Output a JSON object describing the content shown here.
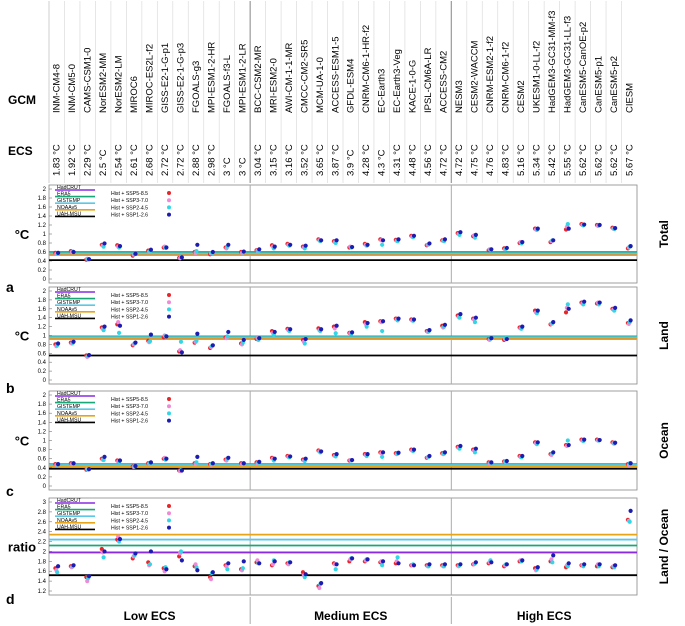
{
  "header": {
    "gcm_label": "GCM",
    "ecs_label": "ECS"
  },
  "models": [
    {
      "gcm": "INM-CM4-8",
      "ecs": "1.83 °C"
    },
    {
      "gcm": "INM-CM5-0",
      "ecs": "1.92 °C"
    },
    {
      "gcm": "CAMS-CSM1-0",
      "ecs": "2.29 °C"
    },
    {
      "gcm": "NorESM2-MM",
      "ecs": "2.5 °C"
    },
    {
      "gcm": "NorESM2-LM",
      "ecs": "2.54 °C"
    },
    {
      "gcm": "MIROC6",
      "ecs": "2.61 °C"
    },
    {
      "gcm": "MIROC-ES2L-f2",
      "ecs": "2.68 °C"
    },
    {
      "gcm": "GISS-E2-1-G-p1",
      "ecs": "2.72 °C"
    },
    {
      "gcm": "GISS-E2-1-G-p3",
      "ecs": "2.72 °C"
    },
    {
      "gcm": "FGOALS-g3",
      "ecs": "2.88 °C"
    },
    {
      "gcm": "MPI-ESM1-2-HR",
      "ecs": "2.98 °C"
    },
    {
      "gcm": "FGOALS-f3-L",
      "ecs": "3 °C"
    },
    {
      "gcm": "MPI-ESM1-2-LR",
      "ecs": "3 °C"
    },
    {
      "gcm": "BCC-CSM2-MR",
      "ecs": "3.04 °C"
    },
    {
      "gcm": "MRI-ESM2-0",
      "ecs": "3.15 °C"
    },
    {
      "gcm": "AWI-CM-1-1-MR",
      "ecs": "3.16 °C"
    },
    {
      "gcm": "CMCC-CM2-SR5",
      "ecs": "3.52 °C"
    },
    {
      "gcm": "MCM-UA-1-0",
      "ecs": "3.65 °C"
    },
    {
      "gcm": "ACCESS-ESM1-5",
      "ecs": "3.87 °C"
    },
    {
      "gcm": "GFDL-ESM4",
      "ecs": "3.9 °C"
    },
    {
      "gcm": "CNRM-CM6-1-HR-f2",
      "ecs": "4.28 °C"
    },
    {
      "gcm": "EC-Earth3",
      "ecs": "4.3 °C"
    },
    {
      "gcm": "EC-Earth3-Veg",
      "ecs": "4.31 °C"
    },
    {
      "gcm": "KACE-1-0-G",
      "ecs": "4.48 °C"
    },
    {
      "gcm": "IPSL-CM6A-LR",
      "ecs": "4.56 °C"
    },
    {
      "gcm": "ACCESS-CM2",
      "ecs": "4.72 °C"
    },
    {
      "gcm": "NESM3",
      "ecs": "4.72 °C"
    },
    {
      "gcm": "CESM2-WACCM",
      "ecs": "4.75 °C"
    },
    {
      "gcm": "CNRM-ESM2-1-f2",
      "ecs": "4.76 °C"
    },
    {
      "gcm": "CNRM-CM6-1-f2",
      "ecs": "4.83 °C"
    },
    {
      "gcm": "CESM2",
      "ecs": "5.16 °C"
    },
    {
      "gcm": "UKESM1-0-LL-f2",
      "ecs": "5.34 °C"
    },
    {
      "gcm": "HadGEM3-GC31-MM-f3",
      "ecs": "5.42 °C"
    },
    {
      "gcm": "HadGEM3-GC31-LL-f3",
      "ecs": "5.55 °C"
    },
    {
      "gcm": "CanESM5-CanOE-p2",
      "ecs": "5.62 °C"
    },
    {
      "gcm": "CanESM5-p1",
      "ecs": "5.62 °C"
    },
    {
      "gcm": "CanESM5-p2",
      "ecs": "5.62 °C"
    },
    {
      "gcm": "CIESM",
      "ecs": "5.67 °C"
    }
  ],
  "groups": {
    "low": "Low ECS",
    "medium": "Medium ECS",
    "high": "High ECS"
  },
  "legend": {
    "observations": [
      {
        "name": "HadCRUT",
        "color": "#8a2be2"
      },
      {
        "name": "ERA5",
        "color": "#18a878"
      },
      {
        "name": "GISTEMP",
        "color": "#5bc8e8"
      },
      {
        "name": "NOAAv5",
        "color": "#e8a417"
      },
      {
        "name": "UAH-MSU",
        "color": "#000000"
      }
    ],
    "scenarios": [
      {
        "name": "Hist + SSP5-8.5",
        "color": "#e8262a"
      },
      {
        "name": "Hist + SSP3-7.0",
        "color": "#f08ad8"
      },
      {
        "name": "Hist + SSP2-4.5",
        "color": "#33d6e6"
      },
      {
        "name": "Hist + SSP1-2.6",
        "color": "#1c1cb0"
      }
    ]
  },
  "chart_data": [
    {
      "type": "scatter",
      "panel": "a",
      "title": "Total",
      "ylabel": "°C",
      "ylim": [
        0,
        2
      ],
      "yticks": [
        "0",
        "0.2",
        "0.4",
        "0.6",
        "0.8",
        "1",
        "1.2",
        "1.4",
        "1.6",
        "1.8",
        "2"
      ],
      "observations": [
        0.56,
        0.6,
        0.57,
        0.53,
        0.42
      ],
      "series": [
        {
          "name": "Hist + SSP5-8.5",
          "values": [
            0.58,
            0.62,
            0.43,
            0.76,
            0.75,
            0.52,
            0.63,
            0.7,
            0.47,
            0.6,
            0.55,
            0.7,
            0.6,
            0.64,
            0.75,
            0.78,
            0.72,
            0.88,
            0.84,
            0.7,
            0.78,
            0.88,
            0.87,
            0.96,
            0.75,
            0.86,
            1.02,
            0.95,
            0.64,
            0.68,
            0.8,
            1.12,
            0.82,
            1.1,
            1.22,
            1.2,
            1.14,
            0.68
          ]
        },
        {
          "name": "Hist + SSP3-7.0",
          "values": [
            0.56,
            0.6,
            0.45,
            0.74,
            0.72,
            0.54,
            0.61,
            0.72,
            0.46,
            0.58,
            0.57,
            0.68,
            0.58,
            0.63,
            0.72,
            0.76,
            0.7,
            0.86,
            0.82,
            0.72,
            0.76,
            0.86,
            0.85,
            0.94,
            0.76,
            0.85,
            1.0,
            0.97,
            0.66,
            0.66,
            0.82,
            1.1,
            0.84,
            1.16,
            1.2,
            1.18,
            1.12,
            0.7
          ]
        },
        {
          "name": "Hist + SSP2-4.5",
          "values": [
            0.57,
            0.61,
            0.44,
            0.72,
            0.7,
            0.55,
            0.62,
            0.69,
            0.5,
            0.62,
            0.58,
            0.72,
            0.59,
            0.62,
            0.68,
            0.74,
            0.68,
            0.84,
            0.8,
            0.7,
            0.74,
            0.76,
            0.84,
            0.93,
            0.77,
            0.84,
            0.98,
            0.92,
            0.65,
            0.67,
            0.79,
            1.09,
            0.86,
            1.22,
            1.19,
            1.19,
            1.11,
            0.72
          ]
        },
        {
          "name": "Hist + SSP1-2.6",
          "values": [
            0.58,
            0.6,
            0.44,
            0.79,
            0.73,
            0.56,
            0.65,
            0.7,
            0.48,
            0.76,
            0.6,
            0.76,
            0.61,
            0.66,
            0.72,
            0.76,
            0.74,
            0.86,
            0.86,
            0.71,
            0.76,
            0.86,
            0.88,
            0.96,
            0.79,
            0.88,
            1.04,
            0.98,
            0.66,
            0.69,
            0.82,
            1.12,
            0.86,
            1.12,
            1.21,
            1.2,
            1.13,
            0.73
          ]
        }
      ]
    },
    {
      "type": "scatter",
      "panel": "b",
      "title": "Land",
      "ylabel": "°C",
      "ylim": [
        0,
        2
      ],
      "yticks": [
        "0",
        "0.2",
        "0.4",
        "0.6",
        "0.8",
        "1",
        "1.2",
        "1.4",
        "1.6",
        "1.8",
        "2"
      ],
      "observations": [
        0.95,
        0.98,
        0.96,
        0.92,
        0.55
      ],
      "series": [
        {
          "name": "Hist + SSP5-8.5",
          "values": [
            0.8,
            0.84,
            0.55,
            1.18,
            1.25,
            0.78,
            0.88,
            0.96,
            0.64,
            0.84,
            0.72,
            0.96,
            0.82,
            0.92,
            1.1,
            1.15,
            0.9,
            1.16,
            1.2,
            1.06,
            1.3,
            1.32,
            1.38,
            1.36,
            1.1,
            1.22,
            1.45,
            1.38,
            0.92,
            0.9,
            1.18,
            1.56,
            1.25,
            1.52,
            1.74,
            1.72,
            1.6,
            1.28
          ]
        },
        {
          "name": "Hist + SSP3-7.0",
          "values": [
            0.76,
            0.82,
            0.52,
            1.15,
            1.3,
            0.8,
            0.85,
            1.0,
            0.67,
            0.86,
            0.74,
            0.94,
            0.8,
            0.94,
            1.06,
            1.12,
            0.86,
            1.12,
            1.16,
            1.05,
            1.26,
            1.3,
            1.36,
            1.34,
            1.08,
            1.18,
            1.42,
            1.36,
            0.9,
            0.92,
            1.16,
            1.52,
            1.26,
            1.62,
            1.72,
            1.74,
            1.58,
            1.26
          ]
        },
        {
          "name": "Hist + SSP2-4.5",
          "values": [
            0.78,
            0.83,
            0.54,
            1.12,
            1.06,
            0.82,
            0.87,
            0.98,
            0.86,
            0.88,
            0.76,
            0.98,
            0.84,
            0.9,
            1.02,
            1.1,
            0.82,
            1.1,
            1.05,
            1.04,
            1.2,
            1.1,
            1.34,
            1.33,
            1.09,
            1.2,
            1.4,
            1.3,
            0.93,
            0.94,
            1.15,
            1.5,
            1.28,
            1.7,
            1.7,
            1.7,
            1.56,
            1.3
          ]
        },
        {
          "name": "Hist + SSP1-2.6",
          "values": [
            0.82,
            0.86,
            0.56,
            1.2,
            1.22,
            0.84,
            1.02,
            0.98,
            0.62,
            1.04,
            0.78,
            1.08,
            0.9,
            0.94,
            1.08,
            1.14,
            0.92,
            1.14,
            1.22,
            1.07,
            1.28,
            1.32,
            1.38,
            1.36,
            1.12,
            1.24,
            1.48,
            1.4,
            0.94,
            0.92,
            1.2,
            1.56,
            1.3,
            1.6,
            1.76,
            1.74,
            1.62,
            1.34
          ]
        }
      ]
    },
    {
      "type": "scatter",
      "panel": "c",
      "title": "Ocean",
      "ylabel": "°C",
      "ylim": [
        0,
        2
      ],
      "yticks": [
        "0",
        "0.2",
        "0.4",
        "0.6",
        "0.8",
        "1",
        "1.2",
        "1.4",
        "1.6",
        "1.8",
        "2"
      ],
      "observations": [
        0.45,
        0.48,
        0.46,
        0.43,
        0.38
      ],
      "series": [
        {
          "name": "Hist + SSP5-8.5",
          "values": [
            0.48,
            0.5,
            0.36,
            0.6,
            0.56,
            0.43,
            0.5,
            0.6,
            0.34,
            0.5,
            0.48,
            0.58,
            0.5,
            0.52,
            0.62,
            0.66,
            0.58,
            0.78,
            0.68,
            0.56,
            0.7,
            0.74,
            0.72,
            0.8,
            0.62,
            0.72,
            0.86,
            0.8,
            0.52,
            0.54,
            0.66,
            0.96,
            0.7,
            0.9,
            1.02,
            1.02,
            0.96,
            0.48
          ]
        },
        {
          "name": "Hist + SSP3-7.0",
          "values": [
            0.46,
            0.48,
            0.37,
            0.58,
            0.54,
            0.42,
            0.49,
            0.62,
            0.33,
            0.48,
            0.47,
            0.56,
            0.48,
            0.5,
            0.6,
            0.64,
            0.56,
            0.76,
            0.66,
            0.57,
            0.68,
            0.72,
            0.7,
            0.78,
            0.63,
            0.7,
            0.84,
            0.78,
            0.5,
            0.53,
            0.64,
            0.94,
            0.68,
            0.88,
            1.0,
            1.0,
            0.94,
            0.46
          ]
        },
        {
          "name": "Hist + SSP2-4.5",
          "values": [
            0.47,
            0.49,
            0.36,
            0.57,
            0.53,
            0.43,
            0.5,
            0.58,
            0.35,
            0.52,
            0.49,
            0.6,
            0.49,
            0.51,
            0.56,
            0.63,
            0.55,
            0.74,
            0.65,
            0.56,
            0.66,
            0.64,
            0.71,
            0.77,
            0.64,
            0.71,
            0.82,
            0.74,
            0.51,
            0.54,
            0.63,
            0.92,
            0.72,
            1.0,
            0.99,
            1.0,
            0.93,
            0.5
          ]
        },
        {
          "name": "Hist + SSP1-2.6",
          "values": [
            0.48,
            0.5,
            0.37,
            0.64,
            0.56,
            0.44,
            0.52,
            0.6,
            0.34,
            0.64,
            0.5,
            0.62,
            0.5,
            0.53,
            0.6,
            0.65,
            0.6,
            0.76,
            0.7,
            0.57,
            0.7,
            0.74,
            0.73,
            0.8,
            0.66,
            0.74,
            0.88,
            0.82,
            0.52,
            0.55,
            0.66,
            0.96,
            0.74,
            0.9,
            1.02,
            1.01,
            0.95,
            0.5
          ]
        }
      ]
    },
    {
      "type": "scatter",
      "panel": "d",
      "title": "Land / Ocean",
      "ylabel": "ratio",
      "ylim": [
        1.2,
        3.0
      ],
      "yticks": [
        "1.2",
        "1.4",
        "1.6",
        "1.8",
        "2",
        "2.2",
        "2.4",
        "2.6",
        "2.8",
        "3"
      ],
      "observations": [
        1.98,
        2.12,
        2.24,
        2.34,
        1.52
      ],
      "series": [
        {
          "name": "Hist + SSP5-8.5",
          "values": [
            1.66,
            1.7,
            1.48,
            2.05,
            2.24,
            1.86,
            1.78,
            1.66,
            1.9,
            1.7,
            1.48,
            1.72,
            1.64,
            1.78,
            1.72,
            1.76,
            1.58,
            1.3,
            1.76,
            1.8,
            1.8,
            1.78,
            1.76,
            1.72,
            1.72,
            1.72,
            1.72,
            1.74,
            1.76,
            1.7,
            1.8,
            1.66,
            1.8,
            1.68,
            1.72,
            1.7,
            1.68,
            2.64
          ]
        },
        {
          "name": "Hist + SSP3-7.0",
          "values": [
            1.62,
            1.68,
            1.4,
            1.98,
            2.3,
            1.9,
            1.72,
            1.6,
            1.96,
            1.74,
            1.44,
            1.7,
            1.62,
            1.82,
            1.74,
            1.74,
            1.52,
            1.26,
            1.74,
            1.84,
            1.82,
            1.8,
            1.8,
            1.72,
            1.7,
            1.7,
            1.7,
            1.74,
            1.78,
            1.72,
            1.82,
            1.62,
            1.84,
            1.72,
            1.72,
            1.74,
            1.7,
            2.62
          ]
        },
        {
          "name": "Hist + SSP2-4.5",
          "values": [
            1.58,
            1.7,
            1.46,
            1.88,
            2.2,
            1.92,
            1.74,
            1.68,
            2.0,
            1.68,
            1.56,
            1.64,
            1.66,
            1.76,
            1.82,
            1.78,
            1.48,
            1.34,
            1.64,
            1.86,
            1.84,
            1.72,
            1.88,
            1.74,
            1.7,
            1.7,
            1.72,
            1.76,
            1.82,
            1.74,
            1.8,
            1.64,
            1.78,
            1.7,
            1.7,
            1.7,
            1.68,
            2.6
          ]
        },
        {
          "name": "Hist + SSP1-2.6",
          "values": [
            1.7,
            1.72,
            1.5,
            2.0,
            2.25,
            1.96,
            2.0,
            1.64,
            1.82,
            1.62,
            1.58,
            1.76,
            1.8,
            1.76,
            1.8,
            1.78,
            1.54,
            1.36,
            1.74,
            1.86,
            1.84,
            1.8,
            1.76,
            1.72,
            1.74,
            1.74,
            1.74,
            1.78,
            1.78,
            1.74,
            1.82,
            1.68,
            1.92,
            1.76,
            1.74,
            1.74,
            1.72,
            2.82
          ]
        }
      ]
    }
  ]
}
